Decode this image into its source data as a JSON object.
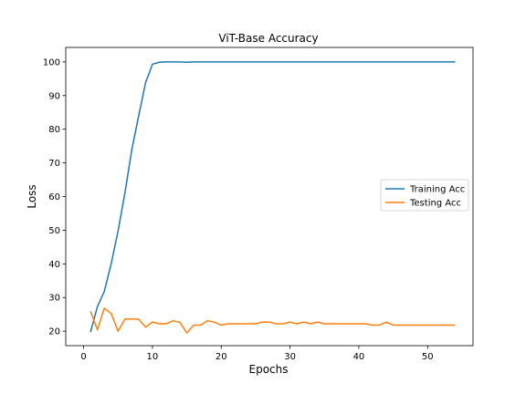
{
  "chart_data": {
    "type": "line",
    "title": "ViT-Base Accuracy",
    "xlabel": "Epochs",
    "ylabel": "Loss",
    "xlim": [
      -2.6,
      56.6
    ],
    "ylim": [
      15.7,
      104.3
    ],
    "xticks": [
      0,
      10,
      20,
      30,
      40,
      50
    ],
    "yticks": [
      20,
      30,
      40,
      50,
      60,
      70,
      80,
      90,
      100
    ],
    "grid": false,
    "legend": "center-right",
    "series": [
      {
        "name": "Training Acc",
        "color": "#1f77b4",
        "x": [
          1,
          2,
          3,
          4,
          5,
          6,
          7,
          8,
          9,
          10,
          11,
          12,
          13,
          14,
          15,
          16,
          17,
          18,
          19,
          20,
          21,
          22,
          23,
          24,
          25,
          26,
          27,
          28,
          29,
          30,
          31,
          32,
          33,
          34,
          35,
          36,
          37,
          38,
          39,
          40,
          41,
          42,
          43,
          44,
          45,
          46,
          47,
          48,
          49,
          50,
          51,
          52,
          53,
          54
        ],
        "values": [
          19.7,
          27.3,
          31.8,
          40.0,
          49.7,
          61.1,
          73.9,
          84.0,
          93.8,
          99.3,
          99.9,
          100,
          100,
          100,
          99.9,
          100,
          100,
          100,
          100,
          100,
          100,
          100,
          100,
          100,
          100,
          100,
          100,
          100,
          100,
          100,
          100,
          100,
          100,
          100,
          100,
          100,
          100,
          100,
          100,
          100,
          100,
          100,
          100,
          100,
          100,
          100,
          100,
          100,
          100,
          100,
          100,
          100,
          100,
          100
        ]
      },
      {
        "name": "Testing Acc",
        "color": "#ff7f0e",
        "x": [
          1,
          2,
          3,
          4,
          5,
          6,
          7,
          8,
          9,
          10,
          11,
          12,
          13,
          14,
          15,
          16,
          17,
          18,
          19,
          20,
          21,
          22,
          23,
          24,
          25,
          26,
          27,
          28,
          29,
          30,
          31,
          32,
          33,
          34,
          35,
          36,
          37,
          38,
          39,
          40,
          41,
          42,
          43,
          44,
          45,
          46,
          47,
          48,
          49,
          50,
          51,
          52,
          53,
          54
        ],
        "values": [
          25.9,
          20.4,
          26.8,
          25.3,
          20.0,
          23.6,
          23.6,
          23.6,
          21.2,
          22.7,
          22.2,
          22.2,
          23.1,
          22.6,
          19.5,
          21.8,
          21.8,
          23.1,
          22.7,
          21.8,
          22.2,
          22.2,
          22.2,
          22.2,
          22.2,
          22.7,
          22.7,
          22.2,
          22.2,
          22.7,
          22.2,
          22.7,
          22.2,
          22.7,
          22.2,
          22.2,
          22.2,
          22.2,
          22.2,
          22.2,
          22.2,
          21.8,
          21.8,
          22.7,
          21.8,
          21.8,
          21.8,
          21.8,
          21.8,
          21.8,
          21.8,
          21.8,
          21.8,
          21.8
        ]
      }
    ]
  }
}
